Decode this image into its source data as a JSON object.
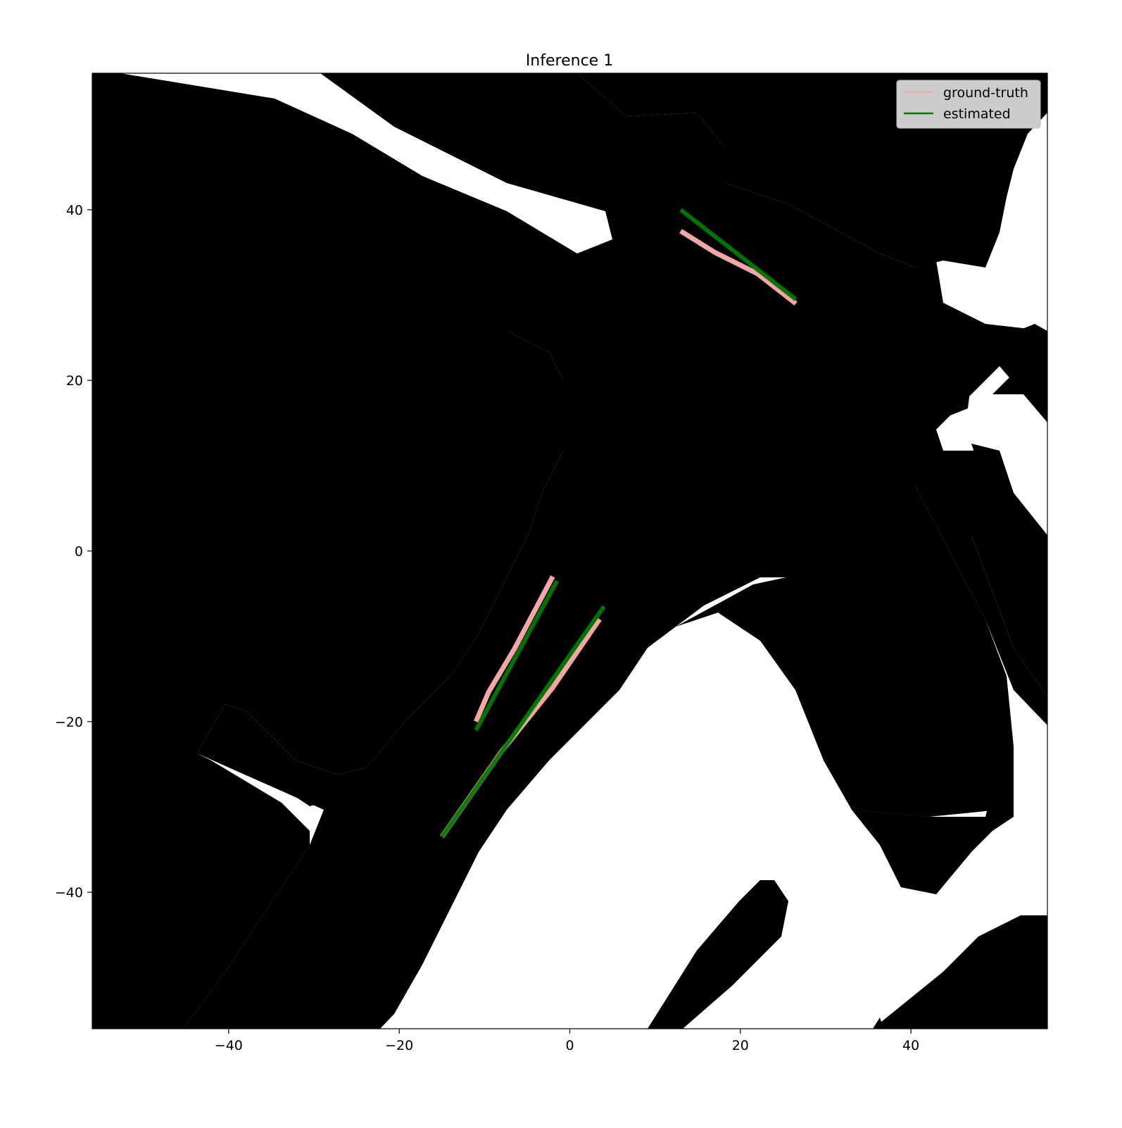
{
  "chart_data": {
    "type": "line",
    "title": "Inference 1",
    "xlabel": "",
    "ylabel": "",
    "xlim": [
      -56,
      56
    ],
    "ylim": [
      -56,
      56
    ],
    "xticks": [
      -40,
      -20,
      0,
      20,
      40
    ],
    "yticks": [
      40,
      20,
      0,
      -20,
      -40
    ],
    "xtick_labels": [
      "−40",
      "−20",
      "0",
      "20",
      "40"
    ],
    "ytick_labels": [
      "40",
      "20",
      "0",
      "−20",
      "−40"
    ],
    "grid": false,
    "legend_placement": "top-right",
    "background": "occupancy-grid-map",
    "series": [
      {
        "name": "ground-truth",
        "color": "#f4a6a6",
        "segments": [
          {
            "x": [
              13.0,
              17.0,
              22.0,
              26.5
            ],
            "y": [
              37.5,
              35.0,
              32.5,
              29.0
            ]
          },
          {
            "x": [
              -11.0,
              -9.5,
              -6.5,
              -2.0
            ],
            "y": [
              -20.0,
              -16.5,
              -11.5,
              -3.0
            ]
          },
          {
            "x": [
              -15.0,
              -8.0,
              -2.0,
              3.5
            ],
            "y": [
              -33.5,
              -23.5,
              -16.0,
              -8.0
            ]
          }
        ]
      },
      {
        "name": "estimated",
        "color": "#007a00",
        "segments": [
          {
            "x": [
              13.0,
              26.5
            ],
            "y": [
              40.0,
              29.5
            ]
          },
          {
            "x": [
              -11.0,
              -1.5
            ],
            "y": [
              -21.0,
              -3.5
            ]
          },
          {
            "x": [
              -15.0,
              4.0
            ],
            "y": [
              -33.5,
              -6.5
            ]
          }
        ]
      }
    ]
  }
}
